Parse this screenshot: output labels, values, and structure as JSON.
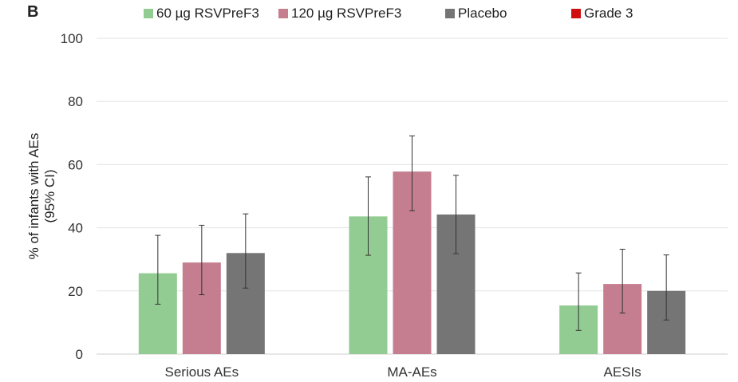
{
  "panel_label": "B",
  "chart_data": {
    "type": "bar",
    "ylabel": "% of infants with AEs",
    "ylabel_sub": "(95% CI)",
    "xlabel": "",
    "ylim": [
      0,
      100
    ],
    "yticks": [
      0,
      20,
      40,
      60,
      80,
      100
    ],
    "grid": true,
    "legend_position": "top",
    "categories": [
      "Serious AEs",
      "MA-AEs",
      "AESIs"
    ],
    "series": [
      {
        "name": "60 µg RSVPreF3",
        "color": "#92cc92",
        "values": [
          25.6,
          43.6,
          15.4
        ],
        "ci_low": [
          15.8,
          31.3,
          7.5
        ],
        "ci_high": [
          37.6,
          56.1,
          25.7
        ]
      },
      {
        "name": "120 µg RSVPreF3",
        "color": "#c47e8f",
        "values": [
          29.0,
          57.8,
          22.2
        ],
        "ci_low": [
          18.8,
          45.4,
          13.0
        ],
        "ci_high": [
          40.8,
          69.1,
          33.2
        ]
      },
      {
        "name": "Placebo",
        "color": "#757575",
        "values": [
          32.0,
          44.2,
          20.0
        ],
        "ci_low": [
          20.9,
          31.8,
          10.8
        ],
        "ci_high": [
          44.4,
          56.6,
          31.4
        ]
      }
    ],
    "extra_legend": [
      {
        "name": "Grade 3",
        "color": "#d01010"
      }
    ]
  }
}
